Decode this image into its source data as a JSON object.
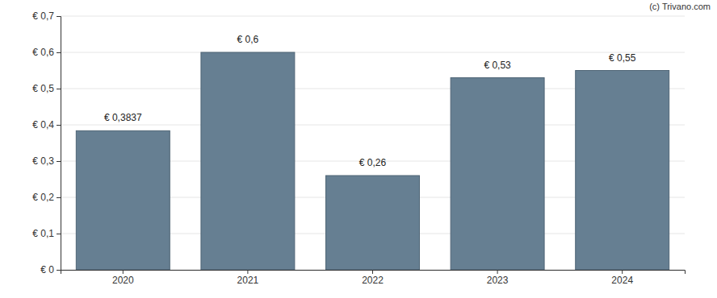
{
  "chart_data": {
    "type": "bar",
    "annotations": [
      "(c) Trivano.com"
    ],
    "categories": [
      "2020",
      "2021",
      "2022",
      "2023",
      "2024"
    ],
    "values": [
      0.3837,
      0.6,
      0.26,
      0.53,
      0.55
    ],
    "value_labels": [
      "€ 0,3837",
      "€ 0,6",
      "€ 0,26",
      "€ 0,53",
      "€ 0,55"
    ],
    "data_labels": true,
    "color": "#667f92",
    "ylim": [
      0,
      0.7
    ],
    "yticks": [
      {
        "value": 0,
        "label": "€ 0"
      },
      {
        "value": 0.1,
        "label": "€ 0,1"
      },
      {
        "value": 0.2,
        "label": "€ 0,2"
      },
      {
        "value": 0.3,
        "label": "€ 0,3"
      },
      {
        "value": 0.4,
        "label": "€ 0,4"
      },
      {
        "value": 0.5,
        "label": "€ 0,5"
      },
      {
        "value": 0.6,
        "label": "€ 0,6"
      },
      {
        "value": 0.7,
        "label": "€ 0,7"
      }
    ],
    "grid": true
  }
}
